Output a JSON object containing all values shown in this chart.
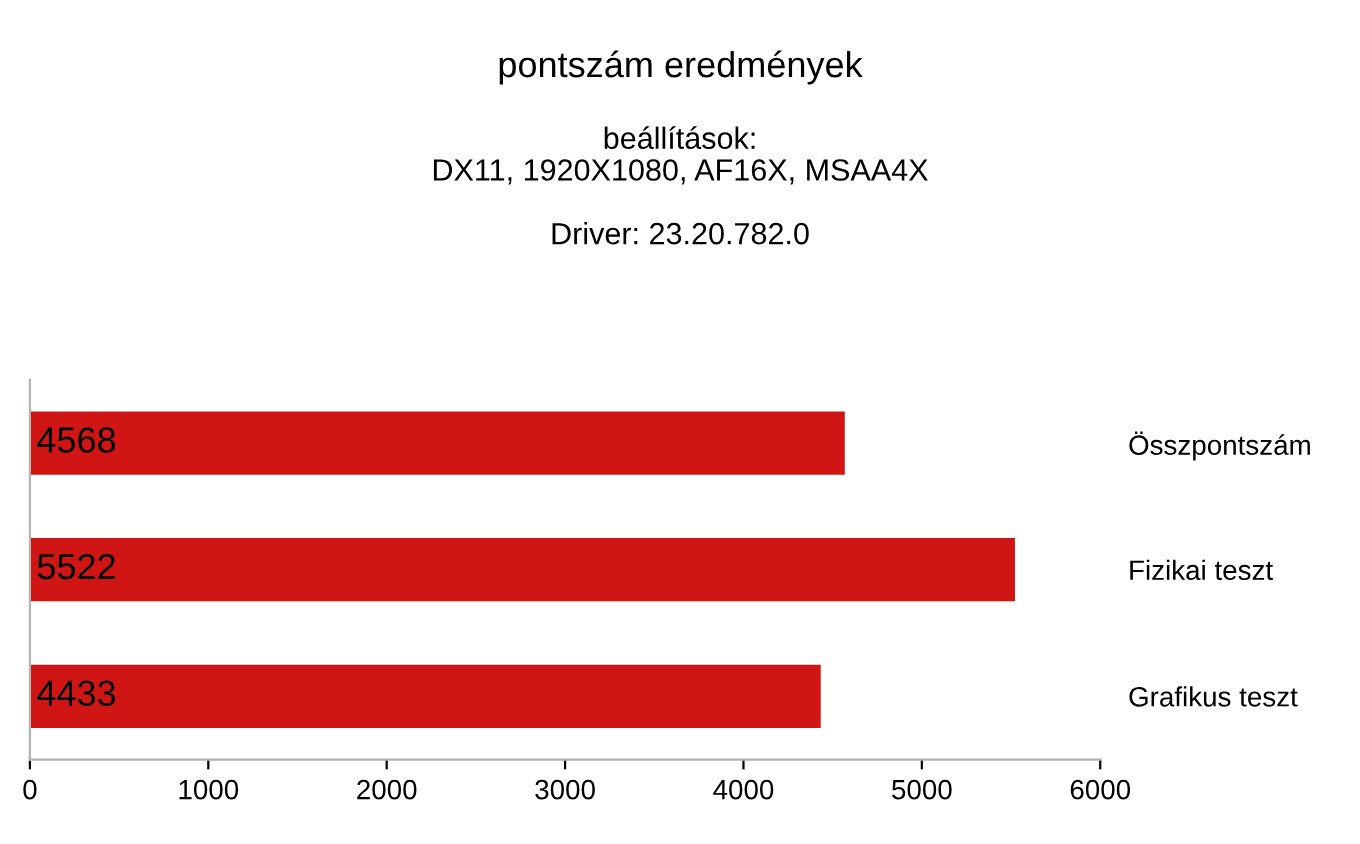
{
  "chart_data": {
    "type": "bar",
    "orientation": "horizontal",
    "title": "pontszám eredmények",
    "subtitle": "beállítások:\nDX11, 1920X1080, AF16X, MSAA4X\n\nDriver: 23.20.782.0",
    "categories": [
      "Összpontszám",
      "Fizikai teszt",
      "Grafikus teszt"
    ],
    "values": [
      4568,
      5522,
      4433
    ],
    "color": "#d01515",
    "xlim": [
      0,
      6000
    ],
    "xticks": [
      0,
      1000,
      2000,
      3000,
      4000,
      5000,
      6000
    ],
    "data_labels": true,
    "grid": false,
    "legend": false
  }
}
